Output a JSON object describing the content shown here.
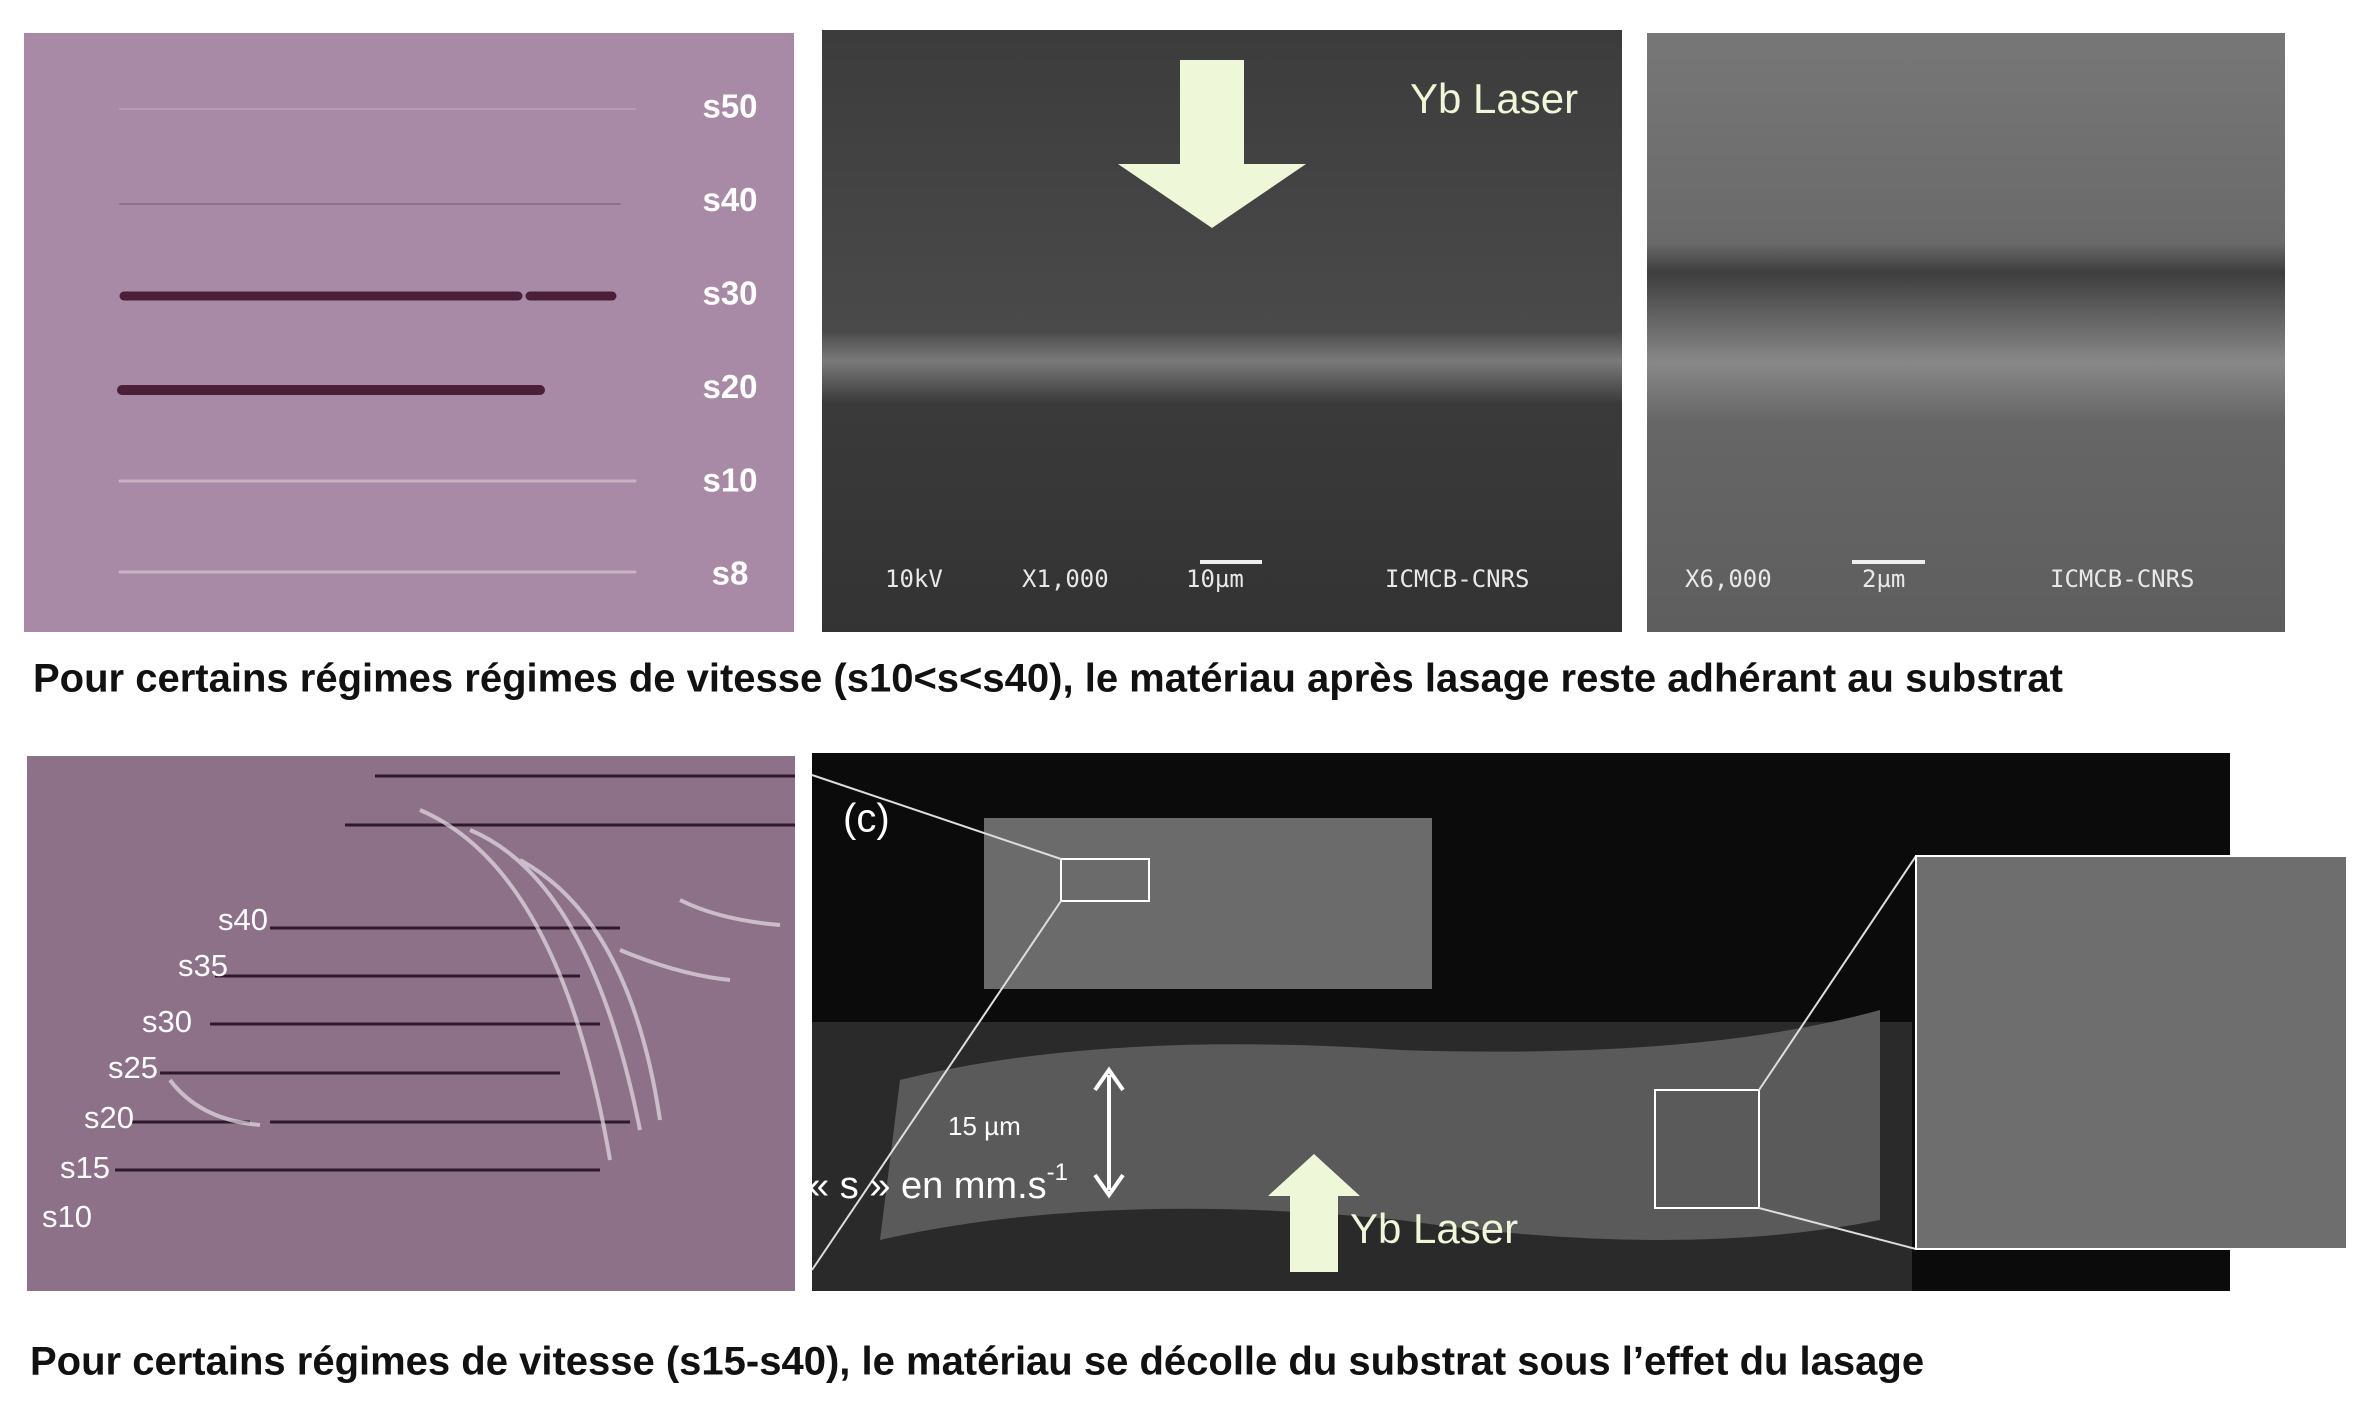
{
  "top": {
    "speed_labels": [
      "s50",
      "s40",
      "s30",
      "s20",
      "s10",
      "s8"
    ],
    "sem1": {
      "laser": "Yb Laser",
      "voltage": "10kV",
      "magnification": "X1,000",
      "scale": "10µm",
      "lab": "ICMCB-CNRS"
    },
    "sem2": {
      "magnification": "X6,000",
      "scale": "2µm",
      "lab": "ICMCB-CNRS"
    },
    "caption": "Pour certains régimes régimes de vitesse (s10<s<s40), le matériau après lasage reste adhérant au substrat"
  },
  "bottom": {
    "speed_labels": [
      "s40",
      "s35",
      "s30",
      "s25",
      "s20",
      "s15",
      "s10"
    ],
    "panel_label": "(c)",
    "thickness": "15 µm",
    "unit": "« s » en mm.s",
    "unit_exponent": "-1",
    "laser": "Yb Laser",
    "caption": "Pour certains régimes de vitesse (s15-s40), le matériau se décolle du substrat sous l’effet du lasage"
  }
}
